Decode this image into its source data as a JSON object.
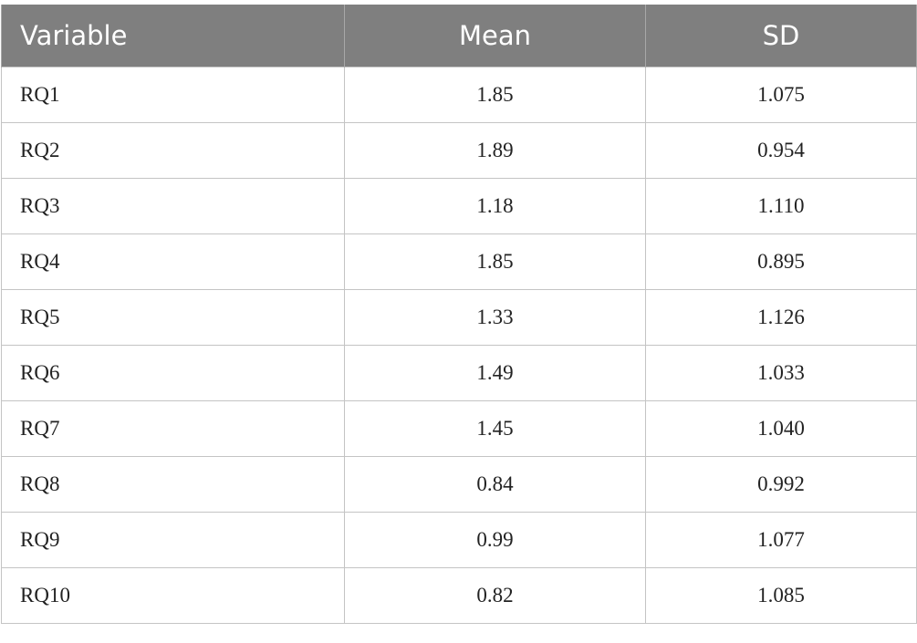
{
  "table": {
    "header": [
      "Variable",
      "Mean",
      "SD"
    ],
    "rows": [
      [
        "RQ1",
        "1.85",
        "1.075"
      ],
      [
        "RQ2",
        "1.89",
        "0.954"
      ],
      [
        "RQ3",
        "1.18",
        "1.110"
      ],
      [
        "RQ4",
        "1.85",
        "0.895"
      ],
      [
        "RQ5",
        "1.33",
        "1.126"
      ],
      [
        "RQ6",
        "1.49",
        "1.033"
      ],
      [
        "RQ7",
        "1.45",
        "1.040"
      ],
      [
        "RQ8",
        "0.84",
        "0.992"
      ],
      [
        "RQ9",
        "0.99",
        "1.077"
      ],
      [
        "RQ10",
        "0.82",
        "1.085"
      ]
    ]
  }
}
